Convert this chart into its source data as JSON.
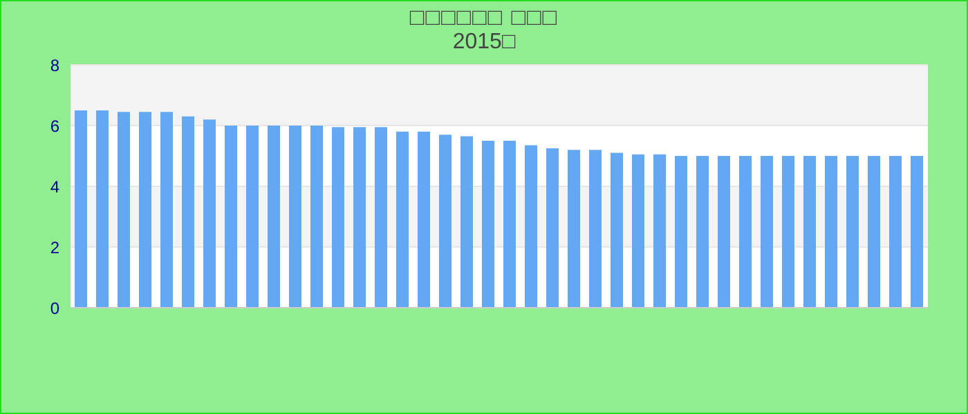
{
  "chart_data": {
    "type": "bar",
    "title": "□□□□□□ □□□",
    "subtitle": "2015□",
    "categories": [
      null,
      null,
      null,
      null,
      null,
      null,
      null,
      null,
      null,
      null,
      null,
      null,
      null,
      null,
      null,
      null,
      null,
      null,
      null,
      null,
      null,
      null,
      null,
      null,
      null,
      null,
      null,
      null,
      null,
      null,
      null,
      null,
      null,
      null,
      null,
      null,
      null,
      null,
      null,
      null
    ],
    "values": [
      6.5,
      6.5,
      6.45,
      6.45,
      6.45,
      6.3,
      6.2,
      6,
      6,
      6,
      6,
      6,
      5.95,
      5.95,
      5.95,
      5.8,
      5.8,
      5.7,
      5.65,
      5.5,
      5.5,
      5.35,
      5.25,
      5.2,
      5.2,
      5.1,
      5.05,
      5.05,
      5,
      5,
      5,
      5,
      5,
      5,
      5,
      5,
      5,
      5,
      5,
      5
    ],
    "color": "#62a8f2",
    "ylim": [
      0,
      8
    ],
    "yticks": [
      0,
      2,
      4,
      6,
      8
    ],
    "grid": "y"
  }
}
